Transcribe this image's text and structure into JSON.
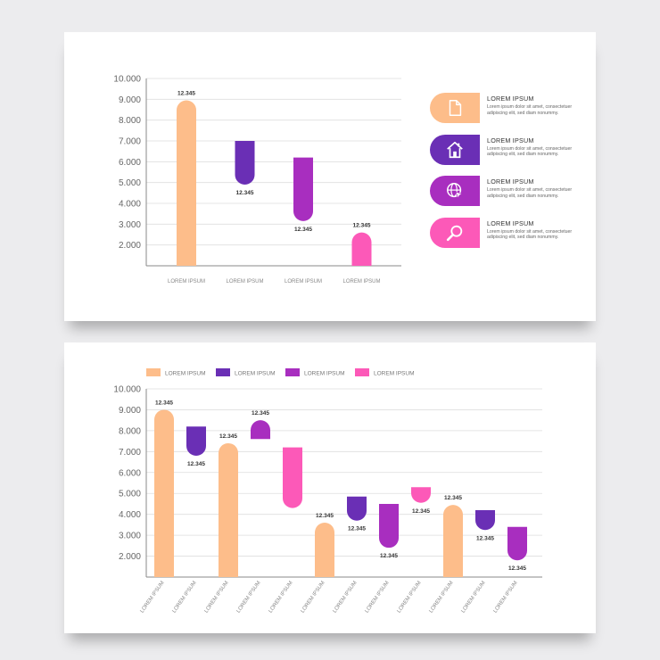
{
  "colors": {
    "orange": "#fdbd8a",
    "indigo": "#6a2fb5",
    "purple": "#a82ebf",
    "pink": "#fc59b8"
  },
  "top_legend": {
    "items": [
      {
        "title": "LOREM IPSUM",
        "text": "Lorem ipsum dolor sit amet, consectetuer adipiscing elit, sed diam nonummy.",
        "icon": "document-icon",
        "color": "#fdbd8a"
      },
      {
        "title": "LOREM IPSUM",
        "text": "Lorem ipsum dolor sit amet, consectetuer adipiscing elit, sed diam nonummy.",
        "icon": "home-icon",
        "color": "#6a2fb5"
      },
      {
        "title": "LOREM IPSUM",
        "text": "Lorem ipsum dolor sit amet, consectetuer adipiscing elit, sed diam nonummy.",
        "icon": "globe-cursor-icon",
        "color": "#a82ebf"
      },
      {
        "title": "LOREM IPSUM",
        "text": "Lorem ipsum dolor sit amet, consectetuer adipiscing elit, sed diam nonummy.",
        "icon": "search-icon",
        "color": "#fc59b8"
      }
    ]
  },
  "chart_data": [
    {
      "type": "bar",
      "variant": "floating-rounded",
      "ylim": [
        1000,
        10000
      ],
      "y_ticks": [
        "10.000",
        "9.000",
        "8.000",
        "7.000",
        "6.000",
        "5.000",
        "4.000",
        "3.000",
        "2.000"
      ],
      "grid": true,
      "categories": [
        "LOREM IPSUM",
        "LOREM IPSUM",
        "LOREM IPSUM",
        "LOREM IPSUM"
      ],
      "bars": [
        {
          "low": 1000,
          "high": 8950,
          "round": "top",
          "color": "orange",
          "label": "12.345",
          "label_pos": "above"
        },
        {
          "low": 4900,
          "high": 7000,
          "round": "bottom",
          "color": "indigo",
          "label": "12.345",
          "label_pos": "below"
        },
        {
          "low": 3150,
          "high": 6200,
          "round": "bottom",
          "color": "purple",
          "label": "12.345",
          "label_pos": "below"
        },
        {
          "low": 1000,
          "high": 2600,
          "round": "top",
          "color": "pink",
          "label": "12.345",
          "label_pos": "above"
        }
      ]
    },
    {
      "type": "bar",
      "variant": "floating-rounded",
      "ylim": [
        1000,
        10000
      ],
      "y_ticks": [
        "10.000",
        "9.000",
        "8.000",
        "7.000",
        "6.000",
        "5.000",
        "4.000",
        "3.000",
        "2.000"
      ],
      "grid": true,
      "legend": {
        "position": "top",
        "items": [
          {
            "label": "LOREM IPSUM",
            "color": "orange"
          },
          {
            "label": "LOREM IPSUM",
            "color": "indigo"
          },
          {
            "label": "LOREM IPSUM",
            "color": "purple"
          },
          {
            "label": "LOREM IPSUM",
            "color": "pink"
          }
        ]
      },
      "categories": [
        "LOREM IPSUM",
        "LOREM IPSUM",
        "LOREM IPSUM",
        "LOREM IPSUM",
        "LOREM IPSUM",
        "LOREM IPSUM",
        "LOREM IPSUM",
        "LOREM IPSUM",
        "LOREM IPSUM",
        "LOREM IPSUM",
        "LOREM IPSUM",
        "LOREM IPSUM"
      ],
      "bars": [
        {
          "low": 1000,
          "high": 9000,
          "round": "top",
          "color": "orange",
          "label": "12.345",
          "label_pos": "above"
        },
        {
          "low": 6800,
          "high": 8200,
          "round": "bottom",
          "color": "indigo",
          "label": "12.345",
          "label_pos": "below"
        },
        {
          "low": 1000,
          "high": 7400,
          "round": "top",
          "color": "orange",
          "label": "12.345",
          "label_pos": "above"
        },
        {
          "low": 7600,
          "high": 8500,
          "round": "top",
          "color": "purple",
          "label": "12.345",
          "label_pos": "above"
        },
        {
          "low": 4300,
          "high": 7200,
          "round": "bottom",
          "color": "pink",
          "label": "",
          "label_pos": "none"
        },
        {
          "low": 1000,
          "high": 3600,
          "round": "top",
          "color": "orange",
          "label": "12.345",
          "label_pos": "above"
        },
        {
          "low": 3700,
          "high": 4850,
          "round": "bottom",
          "color": "indigo",
          "label": "12.345",
          "label_pos": "below"
        },
        {
          "low": 2400,
          "high": 4500,
          "round": "bottom",
          "color": "purple",
          "label": "12.345",
          "label_pos": "below"
        },
        {
          "low": 4550,
          "high": 5300,
          "round": "bottom",
          "color": "pink",
          "label": "12.345",
          "label_pos": "below"
        },
        {
          "low": 1000,
          "high": 4450,
          "round": "top",
          "color": "orange",
          "label": "12.345",
          "label_pos": "above"
        },
        {
          "low": 3250,
          "high": 4200,
          "round": "bottom",
          "color": "indigo",
          "label": "12.345",
          "label_pos": "below"
        },
        {
          "low": 1800,
          "high": 3400,
          "round": "bottom",
          "color": "purple",
          "label": "12.345",
          "label_pos": "below"
        }
      ]
    }
  ]
}
